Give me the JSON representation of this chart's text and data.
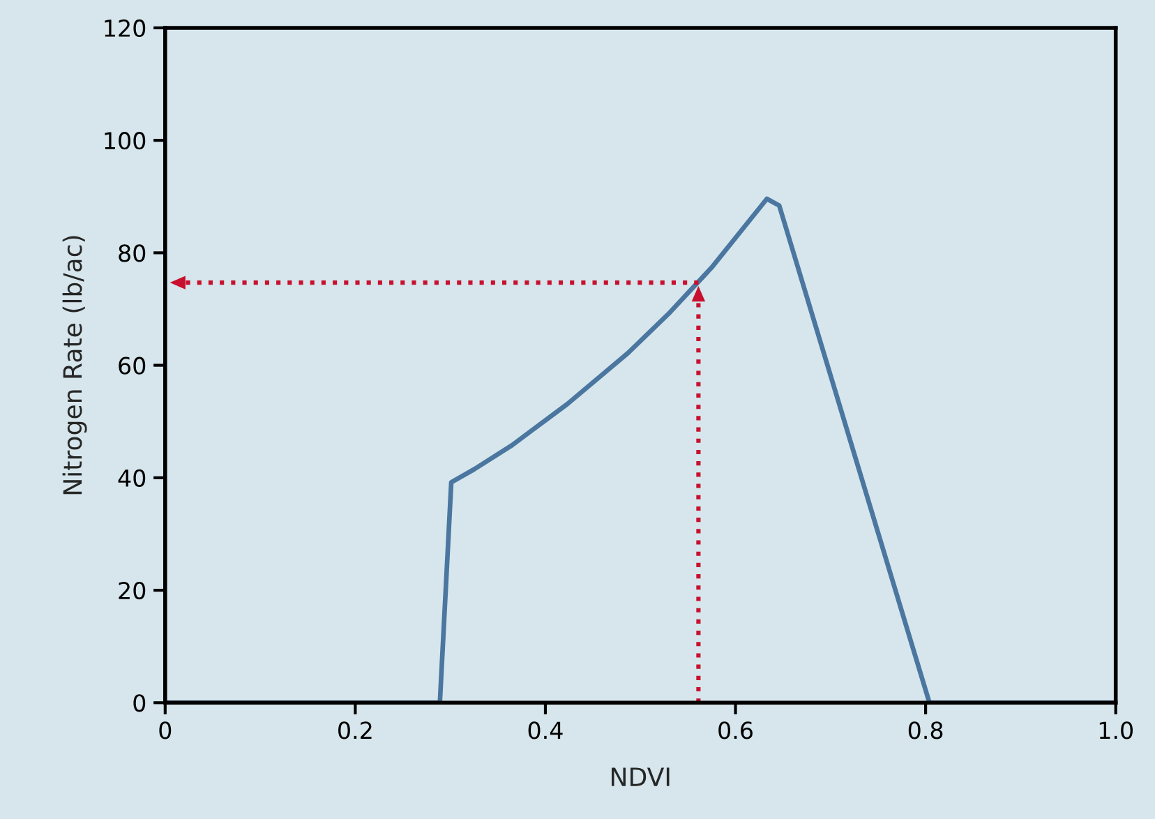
{
  "chart_data": {
    "type": "line",
    "xlabel": "NDVI",
    "ylabel": "Nitrogen Rate (lb/ac)",
    "xlim": [
      0,
      1.0
    ],
    "ylim": [
      0,
      120
    ],
    "xticks": [
      {
        "value": 0,
        "label": "0"
      },
      0.2,
      0.4,
      0.6,
      0.8,
      {
        "value": 1.0,
        "label": "1.0"
      }
    ],
    "yticks": [
      0,
      20,
      40,
      60,
      80,
      100,
      120
    ],
    "grid": false,
    "marker": "none",
    "series": [
      {
        "color": "#4a76a0",
        "line_style": "solid",
        "x": [
          0,
          0.289,
          0.301,
          0.325,
          0.365,
          0.423,
          0.487,
          0.531,
          0.575,
          0.633,
          0.646,
          0.804,
          1.0
        ],
        "values": [
          0,
          0,
          39.2,
          41.5,
          45.8,
          53.1,
          62.2,
          69.4,
          77.4,
          89.6,
          88.4,
          0,
          0
        ]
      },
      {
        "color": "#c8102e",
        "line_style": "dotted",
        "x": [
          0.561,
          0.561
        ],
        "values": [
          0,
          74.1
        ]
      },
      {
        "color": "#c8102e",
        "line_style": "dotted",
        "x": [
          0.561,
          0.005
        ],
        "values": [
          74.7,
          74.7
        ]
      }
    ]
  }
}
